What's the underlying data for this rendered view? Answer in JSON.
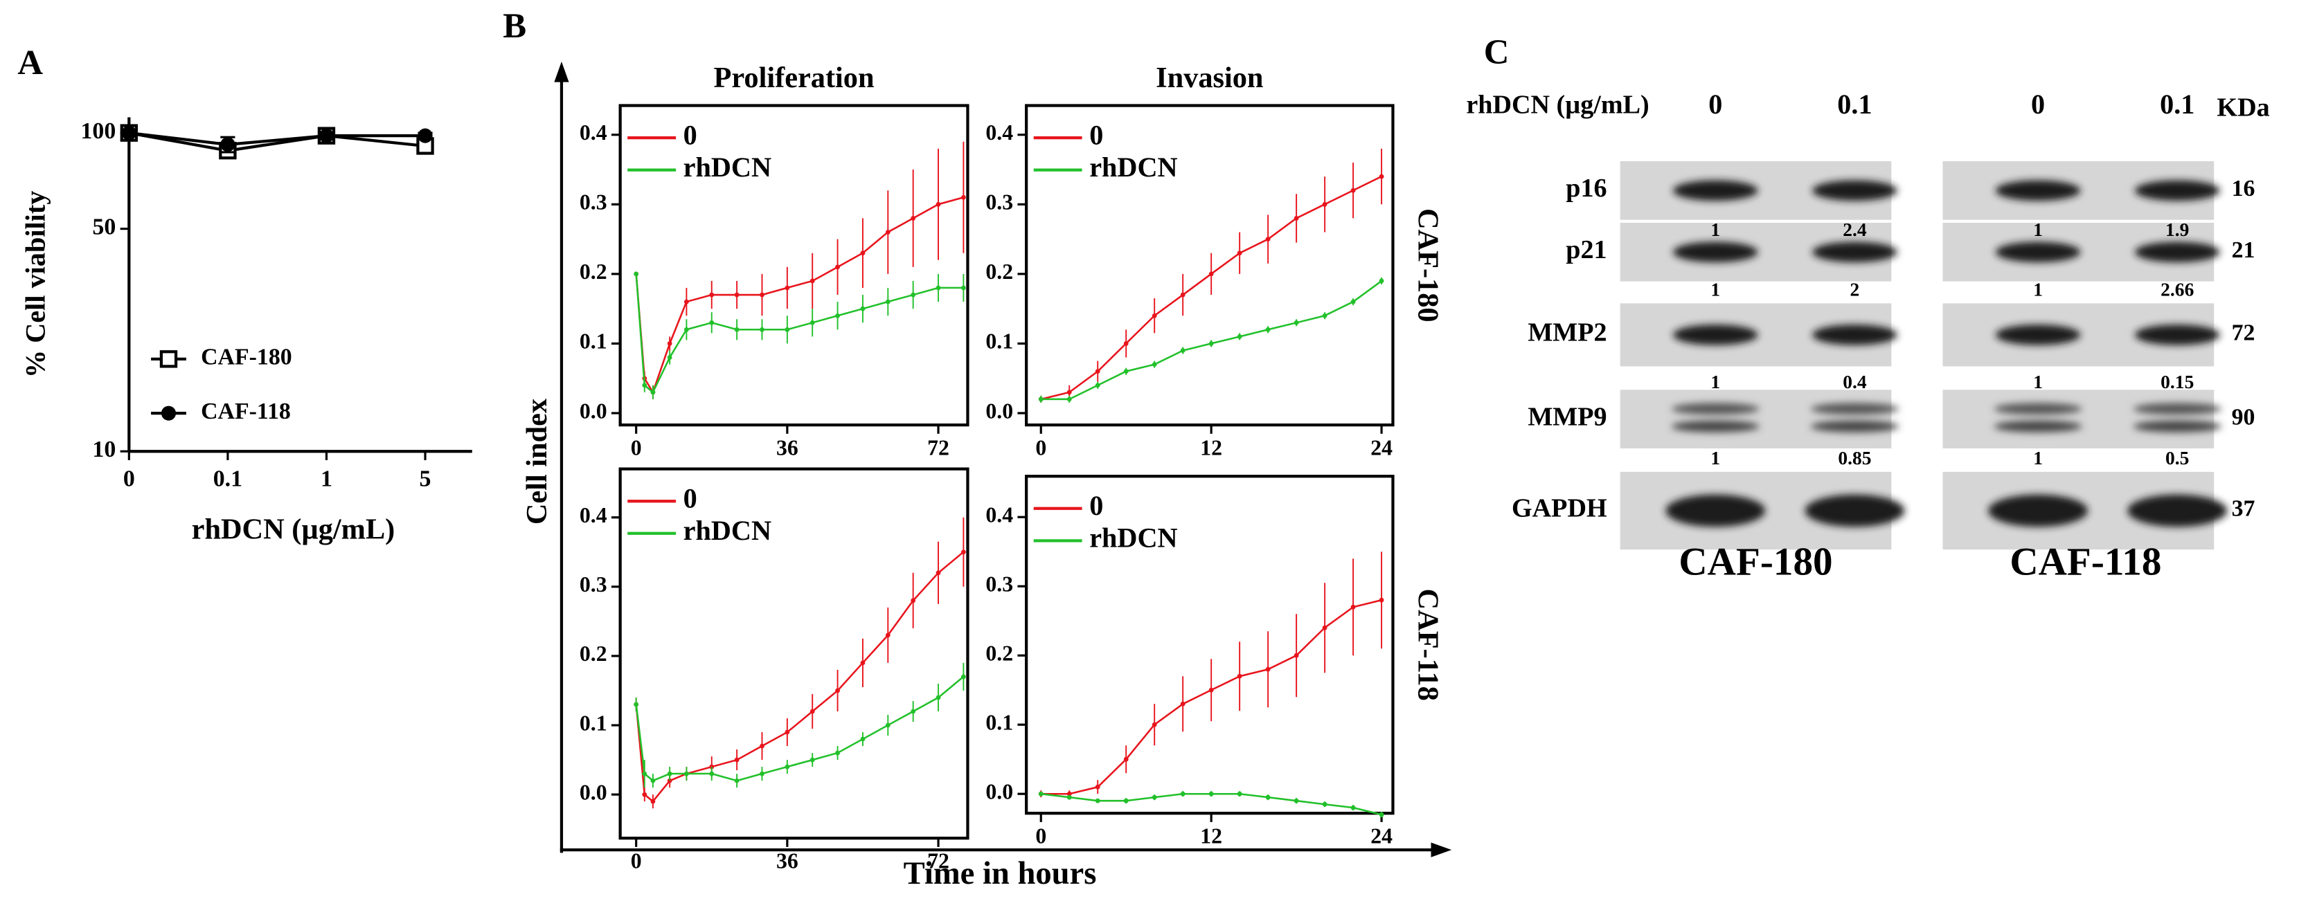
{
  "panel_labels": [
    "A",
    "B",
    "C"
  ],
  "chart_data": [
    {
      "type": "line",
      "ylabel": "% Cell viability",
      "xlabel": "rhDCN (µg/mL)",
      "categories": [
        "0",
        "0.1",
        "1",
        "5"
      ],
      "series": [
        {
          "name": "CAF-180",
          "color": "#000000",
          "marker": "open-square",
          "values": [
            100,
            88,
            98,
            91
          ],
          "errors": [
            2,
            4,
            2,
            3
          ]
        },
        {
          "name": "CAF-118",
          "color": "#000000",
          "marker": "filled-circle",
          "values": [
            100,
            92,
            98,
            98
          ],
          "errors": [
            2,
            5,
            2,
            2
          ]
        }
      ],
      "ylim": [
        10,
        112
      ],
      "yticks": [
        10,
        50,
        100
      ],
      "log_scale": true,
      "legend": "lower left"
    },
    {
      "type": "line",
      "title": "Proliferation",
      "x": [
        0,
        2,
        4,
        8,
        12,
        18,
        24,
        30,
        36,
        42,
        48,
        54,
        60,
        66,
        72,
        78
      ],
      "xlim": [
        -3.8,
        79
      ],
      "xticks": [
        0,
        36,
        72
      ],
      "ylim": [
        -0.017,
        0.442
      ],
      "yticks": [
        {
          "value": 0,
          "label": "0.0"
        },
        0.1,
        0.2,
        0.3,
        0.4
      ],
      "series": [
        {
          "name": "0",
          "color": "#e8141c",
          "values": [
            0.2,
            0.05,
            0.03,
            0.1,
            0.16,
            0.17,
            0.17,
            0.17,
            0.18,
            0.19,
            0.21,
            0.23,
            0.26,
            0.28,
            0.3,
            0.31
          ],
          "errors": [
            0,
            0.01,
            0.01,
            0.01,
            0.02,
            0.02,
            0.02,
            0.03,
            0.03,
            0.04,
            0.04,
            0.05,
            0.06,
            0.07,
            0.08,
            0.08
          ]
        },
        {
          "name": "rhDCN",
          "color": "#22c02a",
          "values": [
            0.2,
            0.04,
            0.03,
            0.08,
            0.12,
            0.13,
            0.12,
            0.12,
            0.12,
            0.13,
            0.14,
            0.15,
            0.16,
            0.17,
            0.18,
            0.18
          ],
          "errors": [
            0,
            0.01,
            0.01,
            0.01,
            0.015,
            0.015,
            0.015,
            0.015,
            0.02,
            0.02,
            0.02,
            0.02,
            0.02,
            0.02,
            0.02,
            0.02
          ]
        }
      ],
      "legend": "upper left"
    },
    {
      "type": "line",
      "title": "Invasion",
      "row_label": "CAF-180",
      "x": [
        0,
        2,
        4,
        6,
        8,
        10,
        12,
        14,
        16,
        18,
        20,
        22,
        24
      ],
      "xlim": [
        -1.03,
        24.8
      ],
      "xticks": [
        0,
        12,
        24
      ],
      "ylim": [
        -0.017,
        0.442
      ],
      "yticks": [
        {
          "value": 0,
          "label": "0.0"
        },
        0.1,
        0.2,
        0.3,
        0.4
      ],
      "series": [
        {
          "name": "0",
          "color": "#e8141c",
          "values": [
            0.02,
            0.03,
            0.06,
            0.1,
            0.14,
            0.17,
            0.2,
            0.23,
            0.25,
            0.28,
            0.3,
            0.32,
            0.34
          ],
          "errors": [
            0.005,
            0.01,
            0.015,
            0.02,
            0.025,
            0.03,
            0.03,
            0.03,
            0.035,
            0.035,
            0.04,
            0.04,
            0.04
          ]
        },
        {
          "name": "rhDCN",
          "color": "#22c02a",
          "values": [
            0.02,
            0.02,
            0.04,
            0.06,
            0.07,
            0.09,
            0.1,
            0.11,
            0.12,
            0.13,
            0.14,
            0.16,
            0.19
          ],
          "errors": [
            0.005,
            0.005,
            0.005,
            0.005,
            0.005,
            0.005,
            0.005,
            0.005,
            0.005,
            0.005,
            0.005,
            0.005,
            0.005
          ]
        }
      ],
      "legend": "upper left"
    },
    {
      "type": "line",
      "x": [
        0,
        2,
        4,
        8,
        12,
        18,
        24,
        30,
        36,
        42,
        48,
        54,
        60,
        66,
        72,
        78
      ],
      "xlim": [
        -3.8,
        79
      ],
      "xticks": [
        0,
        36,
        72
      ],
      "ylim": [
        -0.063,
        0.47
      ],
      "yticks": [
        {
          "value": 0,
          "label": "0.0"
        },
        0.1,
        0.2,
        0.3,
        0.4
      ],
      "series": [
        {
          "name": "0",
          "color": "#e8141c",
          "values": [
            0.13,
            0.0,
            -0.01,
            0.02,
            0.03,
            0.04,
            0.05,
            0.07,
            0.09,
            0.12,
            0.15,
            0.19,
            0.23,
            0.28,
            0.32,
            0.35
          ],
          "errors": [
            0.01,
            0.01,
            0.01,
            0.01,
            0.01,
            0.015,
            0.015,
            0.02,
            0.02,
            0.025,
            0.03,
            0.035,
            0.04,
            0.04,
            0.045,
            0.05
          ]
        },
        {
          "name": "rhDCN",
          "color": "#22c02a",
          "values": [
            0.13,
            0.03,
            0.02,
            0.03,
            0.03,
            0.03,
            0.02,
            0.03,
            0.04,
            0.05,
            0.06,
            0.08,
            0.1,
            0.12,
            0.14,
            0.17
          ],
          "errors": [
            0.01,
            0.02,
            0.01,
            0.01,
            0.01,
            0.01,
            0.01,
            0.01,
            0.01,
            0.01,
            0.01,
            0.01,
            0.015,
            0.015,
            0.02,
            0.02
          ]
        }
      ],
      "legend": "upper left"
    },
    {
      "type": "line",
      "row_label": "CAF-118",
      "x": [
        0,
        2,
        4,
        6,
        8,
        10,
        12,
        14,
        16,
        18,
        20,
        22,
        24
      ],
      "xlim": [
        -1.03,
        24.8
      ],
      "xticks": [
        0,
        12,
        24
      ],
      "ylim": [
        -0.028,
        0.459
      ],
      "yticks": [
        {
          "value": 0,
          "label": "0.0"
        },
        0.1,
        0.2,
        0.3,
        0.4
      ],
      "series": [
        {
          "name": "0",
          "color": "#e8141c",
          "values": [
            0.0,
            0.0,
            0.01,
            0.05,
            0.1,
            0.13,
            0.15,
            0.17,
            0.18,
            0.2,
            0.24,
            0.27,
            0.28
          ],
          "errors": [
            0.005,
            0.005,
            0.01,
            0.02,
            0.03,
            0.04,
            0.045,
            0.05,
            0.055,
            0.06,
            0.065,
            0.07,
            0.07
          ]
        },
        {
          "name": "rhDCN",
          "color": "#22c02a",
          "values": [
            0.0,
            -0.005,
            -0.01,
            -0.01,
            -0.005,
            0.0,
            0.0,
            0.0,
            -0.005,
            -0.01,
            -0.015,
            -0.02,
            -0.03
          ],
          "errors": [
            0.003,
            0.003,
            0.003,
            0.004,
            0.004,
            0.004,
            0.004,
            0.004,
            0.004,
            0.004,
            0.004,
            0.004,
            0.004
          ]
        }
      ],
      "legend": "upper left"
    }
  ],
  "panel_b": {
    "ylabel": "Cell index",
    "xlabel": "Time in hours"
  },
  "blot": {
    "treatment_label": "rhDCN (µg/mL)",
    "lanes": [
      "0",
      "0.1"
    ],
    "kda_label": "KDa",
    "proteins": [
      {
        "name": "p16",
        "kda": 16
      },
      {
        "name": "p21",
        "kda": 21
      },
      {
        "name": "MMP2",
        "kda": 72
      },
      {
        "name": "MMP9",
        "kda": 90
      },
      {
        "name": "GAPDH",
        "kda": 37
      }
    ],
    "groups": [
      {
        "name": "CAF-180",
        "ratios": [
          [
            1,
            2.4
          ],
          [
            1,
            2
          ],
          [
            1,
            0.4
          ],
          [
            1,
            0.85
          ]
        ]
      },
      {
        "name": "CAF-118",
        "ratios": [
          [
            1,
            1.9
          ],
          [
            1,
            2.66
          ],
          [
            1,
            0.15
          ],
          [
            1,
            0.5
          ]
        ]
      }
    ]
  }
}
